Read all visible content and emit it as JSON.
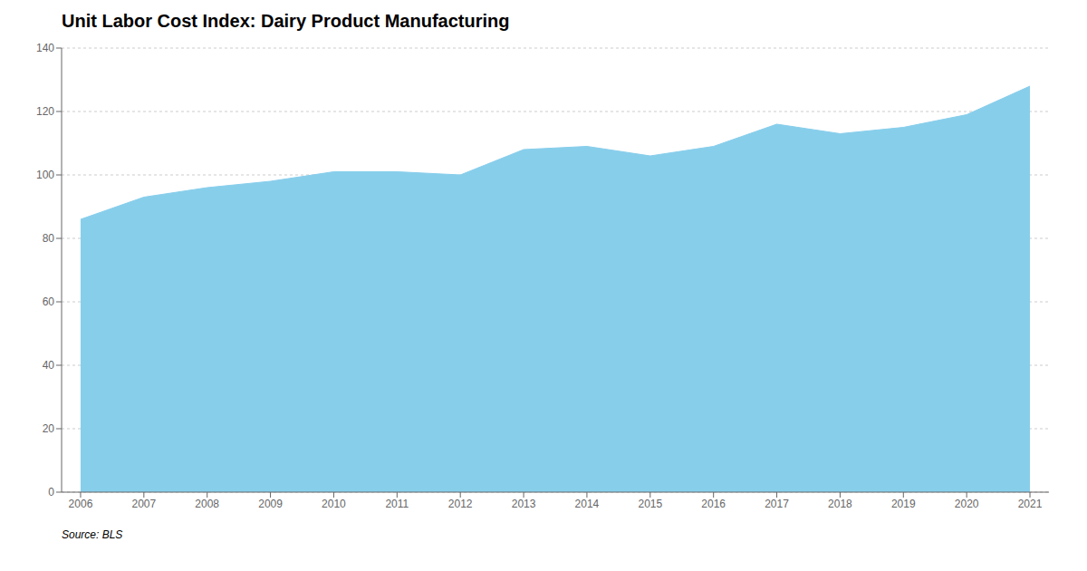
{
  "chart_data": {
    "type": "area",
    "title": "Unit Labor Cost Index: Dairy Product Manufacturing",
    "x": [
      2006,
      2007,
      2008,
      2009,
      2010,
      2011,
      2012,
      2013,
      2014,
      2015,
      2016,
      2017,
      2018,
      2019,
      2020,
      2021
    ],
    "values": [
      86,
      93,
      96,
      98,
      101,
      101,
      100,
      108,
      109,
      106,
      109,
      116,
      113,
      115,
      119,
      128
    ],
    "color": "#87CEEB",
    "xlim": [
      2005.7,
      2021.3
    ],
    "xticks": [
      2006,
      2007,
      2008,
      2009,
      2010,
      2011,
      2012,
      2013,
      2014,
      2015,
      2016,
      2017,
      2018,
      2019,
      2020,
      2021
    ],
    "ylim": [
      0,
      140
    ],
    "yticks": [
      0,
      20,
      40,
      60,
      80,
      100,
      120,
      140
    ],
    "grid": true,
    "annotation": "Source: BLS"
  }
}
